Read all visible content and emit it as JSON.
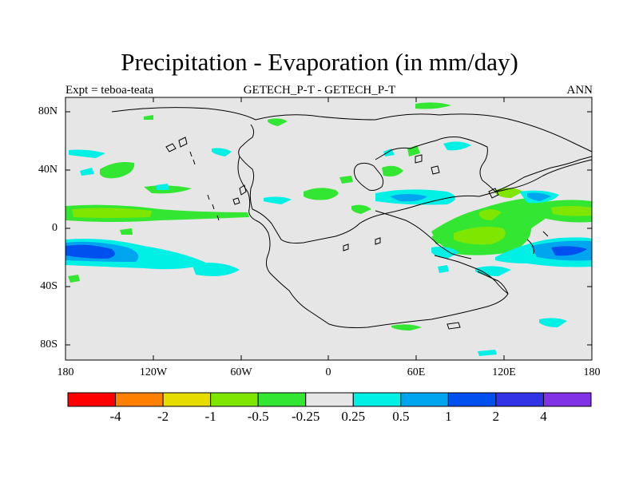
{
  "title": "Precipitation - Evaporation (in mm/day)",
  "subtitle_left": "Expt = teboa-teata",
  "subtitle_center": "GETECH_P-T - GETECH_P-T",
  "subtitle_right": "ANN",
  "lat_labels": [
    "80N",
    "40N",
    "0",
    "40S",
    "80S"
  ],
  "lon_labels": [
    "180",
    "120W",
    "60W",
    "0",
    "60E",
    "120E",
    "180"
  ],
  "colorbar": {
    "colors": [
      "#ff0000",
      "#ff7f00",
      "#e6dc00",
      "#7fe600",
      "#32e632",
      "#e6e6e6",
      "#00f0e6",
      "#00a5f0",
      "#0050f0",
      "#3232e6",
      "#8232e6"
    ],
    "labels": [
      "-4",
      "-2",
      "-1",
      "-0.5",
      "-0.25",
      "0.25",
      "0.5",
      "1",
      "2",
      "4"
    ]
  },
  "colors": {
    "background": "#e6e6e6",
    "green_light": "#7fe600",
    "green": "#32e632",
    "cyan": "#00f0e6",
    "blue_light": "#00a5f0",
    "blue": "#0050f0"
  }
}
